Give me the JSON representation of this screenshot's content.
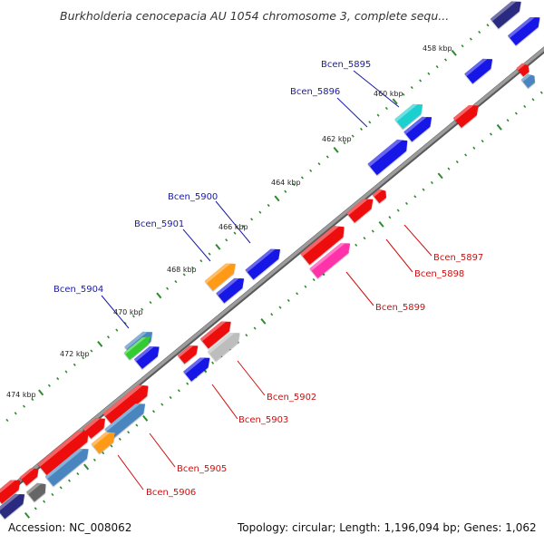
{
  "title": "Burkholderia cenocepacia AU 1054 chromosome 3, complete sequ...",
  "footer": {
    "accession": "Accession: NC_008062",
    "summary": "Topology: circular; Length: 1,196,094 bp; Genes: 1,062"
  },
  "ticks": [
    "458 kbp",
    "460 kbp",
    "462 kbp",
    "464 kbp",
    "466 kbp",
    "468 kbp",
    "470 kbp",
    "472 kbp",
    "474 kbp"
  ],
  "labels": {
    "forward": [
      "Bcen_5895",
      "Bcen_5896",
      "Bcen_5900",
      "Bcen_5901",
      "Bcen_5904"
    ],
    "reverse": [
      "Bcen_5897",
      "Bcen_5898",
      "Bcen_5899",
      "Bcen_5902",
      "Bcen_5903",
      "Bcen_5905",
      "Bcen_5906"
    ]
  },
  "colors": {
    "forward_label": "#1a1aa8",
    "reverse_label": "#cc1111",
    "backbone": "#8a8a8a",
    "tick_dots": "#2e8b2e",
    "blue": "#1414e6",
    "red": "#ee1111",
    "orange": "#ff9a14",
    "cyan": "#1fd0d0",
    "steel": "#4a86c0",
    "magenta": "#ff33aa",
    "grey": "#bdbdbd",
    "dark": "#2a2a80",
    "green": "#33cc33"
  }
}
